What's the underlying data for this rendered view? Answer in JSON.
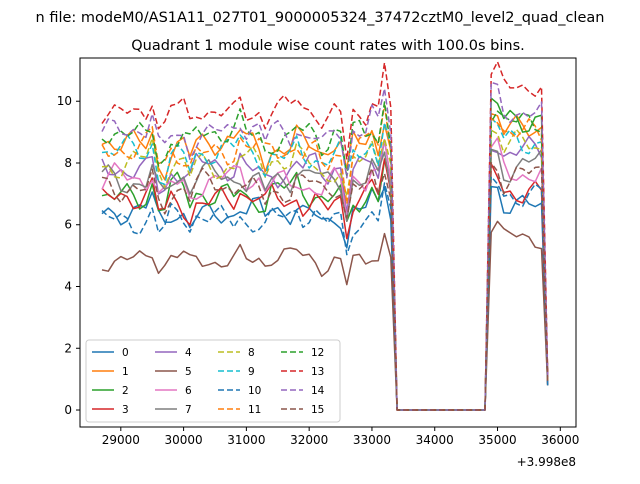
{
  "figure": {
    "suptitle": "n file: modeM0/AS1A11_027T01_9000005324_37472cztM0_level2_quad_clean",
    "title": "Quadrant 1 module wise count rates with 100.0s bins.",
    "x_offset_label": "+3.998e8"
  },
  "chart_data": {
    "type": "line",
    "title": "Quadrant 1 module wise count rates with 100.0s bins.",
    "xlabel": "",
    "ylabel": "",
    "x_offset": 399800000,
    "xlim": [
      28350,
      36250
    ],
    "ylim": [
      -0.55,
      11.4
    ],
    "xticks": [
      29000,
      30000,
      31000,
      32000,
      33000,
      34000,
      35000,
      36000
    ],
    "yticks": [
      0,
      2,
      4,
      6,
      8,
      10
    ],
    "xtick_labels": [
      "29000",
      "30000",
      "31000",
      "32000",
      "33000",
      "34000",
      "35000",
      "36000"
    ],
    "ytick_labels": [
      "0",
      "2",
      "4",
      "6",
      "8",
      "10"
    ],
    "grid": false,
    "legend_position": "lower-left",
    "legend_columns": 4,
    "time_range": [
      28700,
      35800
    ],
    "data_gap": [
      33400,
      34800
    ],
    "sample_step_s": 100,
    "series": [
      {
        "name": "0",
        "color": "#1f77b4",
        "dash": "solid",
        "level": 6.4,
        "after_gap": 6.6,
        "spread": 0.45
      },
      {
        "name": "1",
        "color": "#ff7f0e",
        "dash": "solid",
        "level": 8.6,
        "after_gap": 9.2,
        "spread": 0.5
      },
      {
        "name": "2",
        "color": "#2ca02c",
        "dash": "solid",
        "level": 7.0,
        "after_gap": 9.3,
        "spread": 0.55
      },
      {
        "name": "3",
        "color": "#d62728",
        "dash": "solid",
        "level": 6.8,
        "after_gap": 7.1,
        "spread": 0.5
      },
      {
        "name": "4",
        "color": "#9467bd",
        "dash": "solid",
        "level": 7.8,
        "after_gap": 8.4,
        "spread": 0.5
      },
      {
        "name": "5",
        "color": "#8c564b",
        "dash": "solid",
        "level": 4.9,
        "after_gap": 5.5,
        "spread": 0.35
      },
      {
        "name": "6",
        "color": "#e377c2",
        "dash": "solid",
        "level": 7.4,
        "after_gap": 7.8,
        "spread": 0.5
      },
      {
        "name": "7",
        "color": "#7f7f7f",
        "dash": "solid",
        "level": 7.5,
        "after_gap": 7.9,
        "spread": 0.5
      },
      {
        "name": "8",
        "color": "#bcbd22",
        "dash": "dashed",
        "level": 8.0,
        "after_gap": 8.5,
        "spread": 0.5
      },
      {
        "name": "9",
        "color": "#17becf",
        "dash": "dashed",
        "level": 8.3,
        "after_gap": 8.8,
        "spread": 0.5
      },
      {
        "name": "10",
        "color": "#1f77b4",
        "dash": "dashed",
        "level": 6.2,
        "after_gap": 6.9,
        "spread": 0.45
      },
      {
        "name": "11",
        "color": "#ff7f0e",
        "dash": "dashed",
        "level": 8.4,
        "after_gap": 9.0,
        "spread": 0.5
      },
      {
        "name": "12",
        "color": "#2ca02c",
        "dash": "dashed",
        "level": 8.9,
        "after_gap": 9.4,
        "spread": 0.5
      },
      {
        "name": "13",
        "color": "#d62728",
        "dash": "dashed",
        "level": 9.7,
        "after_gap": 10.4,
        "spread": 0.4
      },
      {
        "name": "14",
        "color": "#9467bd",
        "dash": "dashed",
        "level": 9.0,
        "after_gap": 9.7,
        "spread": 0.45
      },
      {
        "name": "15",
        "color": "#8c564b",
        "dash": "dashed",
        "level": 7.2,
        "after_gap": 7.6,
        "spread": 0.5
      }
    ]
  }
}
